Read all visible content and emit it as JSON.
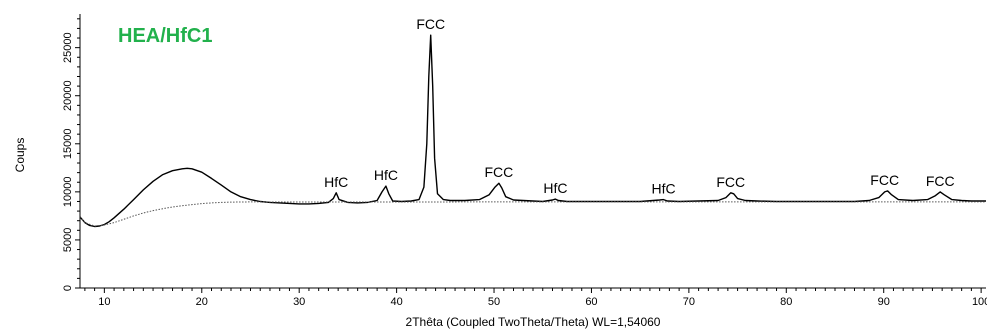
{
  "chart_data": {
    "type": "line",
    "title": "HEA/HfC1",
    "title_color": "#22b14c",
    "xlabel": "2Thêta (Coupled TwoTheta/Theta) WL=1,54060",
    "ylabel": "Coups",
    "xlim": [
      7.5,
      100.5
    ],
    "ylim": [
      0,
      28500
    ],
    "x_ticks": [
      10,
      20,
      30,
      40,
      50,
      60,
      70,
      80,
      90,
      100
    ],
    "y_ticks": [
      0,
      5000,
      10000,
      15000,
      20000,
      25000
    ],
    "grid": false,
    "series": [
      {
        "style": "solid",
        "color": "#000000",
        "x": [
          7.5,
          8,
          8.5,
          9,
          9.5,
          10,
          10.5,
          11,
          12,
          13,
          14,
          15,
          16,
          17,
          18,
          18.5,
          19,
          20,
          21,
          22,
          23,
          24,
          25,
          26,
          27,
          28,
          29,
          30,
          31,
          32,
          33,
          33.5,
          33.8,
          34.1,
          35,
          36,
          37,
          38,
          38.5,
          38.9,
          39.2,
          39.6,
          40.5,
          41.5,
          42.3,
          42.8,
          43.1,
          43.3,
          43.5,
          43.7,
          43.9,
          44.2,
          44.8,
          45.5,
          47,
          48.5,
          49.5,
          50.1,
          50.5,
          50.8,
          51.2,
          52,
          53,
          54,
          55,
          56,
          56.3,
          56.6,
          57.5,
          59,
          61,
          63,
          65,
          67,
          67.4,
          67.8,
          69,
          71,
          73,
          73.8,
          74.3,
          74.6,
          75,
          75.8,
          77,
          79,
          81,
          83,
          85,
          87,
          88.5,
          89.5,
          90.1,
          90.4,
          90.8,
          91.5,
          93,
          94.5,
          95.3,
          95.8,
          96.2,
          97,
          98,
          99,
          100,
          100.5
        ],
        "y": [
          7400,
          6800,
          6500,
          6400,
          6450,
          6600,
          6900,
          7300,
          8200,
          9200,
          10200,
          11100,
          11800,
          12200,
          12400,
          12450,
          12400,
          12050,
          11400,
          10700,
          10000,
          9500,
          9200,
          9000,
          8900,
          8850,
          8800,
          8750,
          8750,
          8800,
          8900,
          9300,
          9900,
          9200,
          8900,
          8850,
          8900,
          9100,
          10000,
          10600,
          9800,
          9050,
          9000,
          9050,
          9200,
          10500,
          15000,
          22000,
          26300,
          21000,
          13500,
          9800,
          9200,
          9100,
          9100,
          9200,
          9700,
          10500,
          10900,
          10400,
          9500,
          9150,
          9100,
          9050,
          9000,
          9150,
          9250,
          9100,
          9000,
          9000,
          9000,
          9000,
          9000,
          9150,
          9200,
          9050,
          9000,
          9050,
          9100,
          9400,
          9900,
          9800,
          9300,
          9100,
          9050,
          9000,
          9000,
          9000,
          9000,
          9000,
          9100,
          9400,
          10000,
          10100,
          9700,
          9200,
          9100,
          9200,
          9600,
          10000,
          9700,
          9200,
          9100,
          9050,
          9050,
          9050
        ]
      },
      {
        "style": "dotted",
        "color": "#555555",
        "x": [
          7.5,
          8,
          9,
          10,
          11,
          12,
          13,
          14,
          15,
          16,
          17,
          18,
          19,
          20,
          21,
          22,
          23,
          24,
          25,
          26,
          28,
          30,
          35,
          40,
          50,
          60,
          70,
          80,
          90,
          100,
          100.5
        ],
        "y": [
          7400,
          6800,
          6450,
          6550,
          6800,
          7150,
          7500,
          7800,
          8050,
          8250,
          8420,
          8560,
          8680,
          8780,
          8850,
          8900,
          8930,
          8950,
          8960,
          8960,
          8950,
          8950,
          8950,
          8950,
          8960,
          8960,
          8960,
          8960,
          8960,
          8960,
          8960
        ]
      }
    ],
    "annotations": [
      {
        "text": "FCC",
        "x": 43.5,
        "y": 26300
      },
      {
        "text": "HfC",
        "x": 33.8,
        "y": 9900
      },
      {
        "text": "HfC",
        "x": 38.9,
        "y": 10600
      },
      {
        "text": "FCC",
        "x": 50.5,
        "y": 10900
      },
      {
        "text": "HfC",
        "x": 56.3,
        "y": 9250
      },
      {
        "text": "HfC",
        "x": 67.4,
        "y": 9200
      },
      {
        "text": "FCC",
        "x": 74.3,
        "y": 9900
      },
      {
        "text": "FCC",
        "x": 90.1,
        "y": 10100
      },
      {
        "text": "FCC",
        "x": 95.8,
        "y": 10000
      }
    ]
  }
}
